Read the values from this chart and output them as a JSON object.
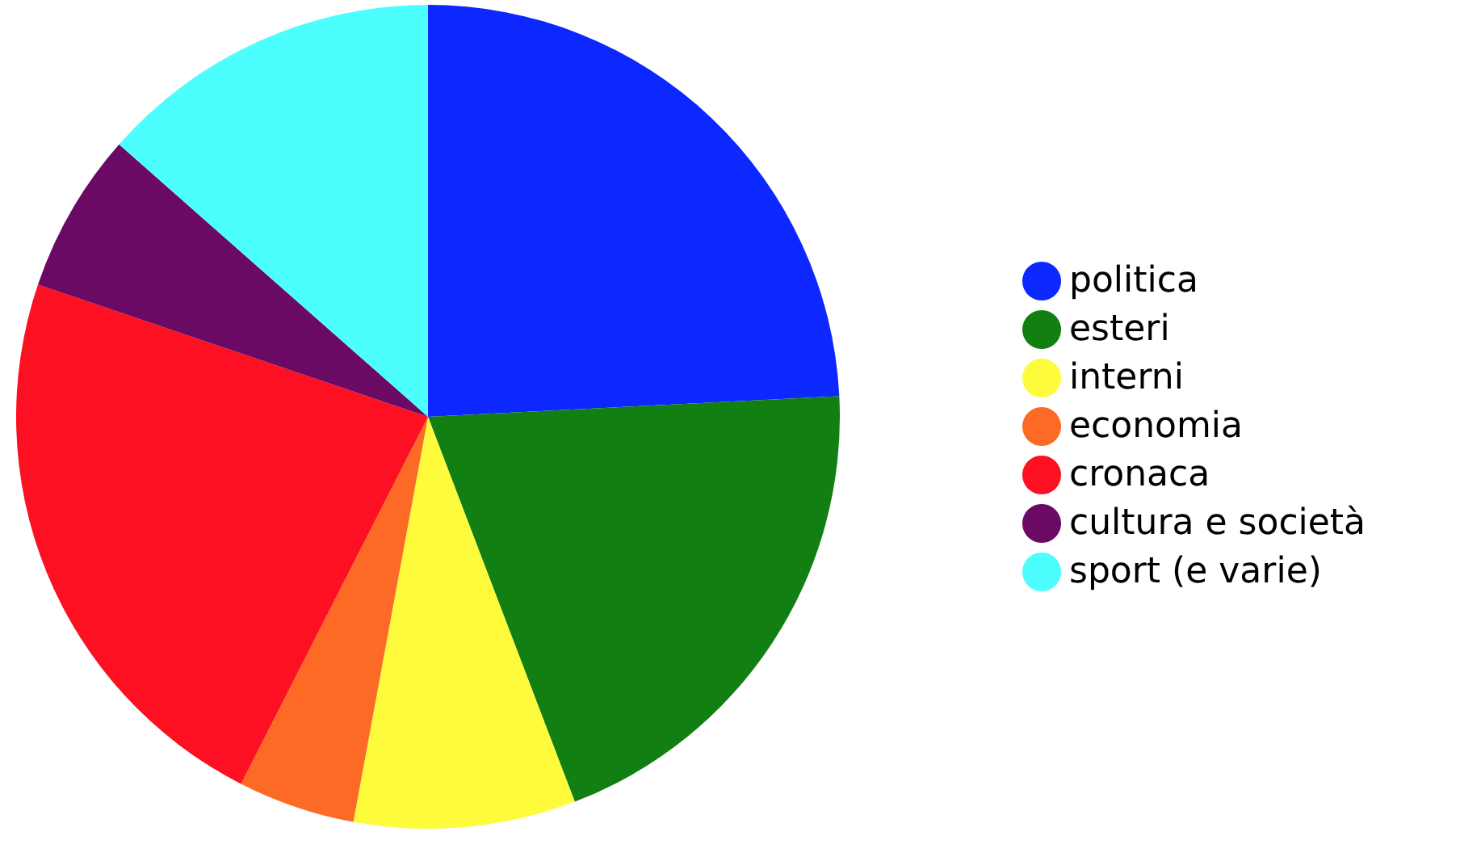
{
  "chart_data": {
    "type": "pie",
    "categories": [
      "politica",
      "esteri",
      "interni",
      "economia",
      "cronaca",
      "cultura e società",
      "sport (e varie)"
    ],
    "values": [
      24.2,
      20,
      8.7,
      4.6,
      22.7,
      6.3,
      13.5
    ],
    "colors": [
      "#0d27ff",
      "#117f12",
      "#fefb3c",
      "#fd6a26",
      "#fc1021",
      "#6a0a64",
      "#4cfefe"
    ],
    "legend": "right"
  }
}
